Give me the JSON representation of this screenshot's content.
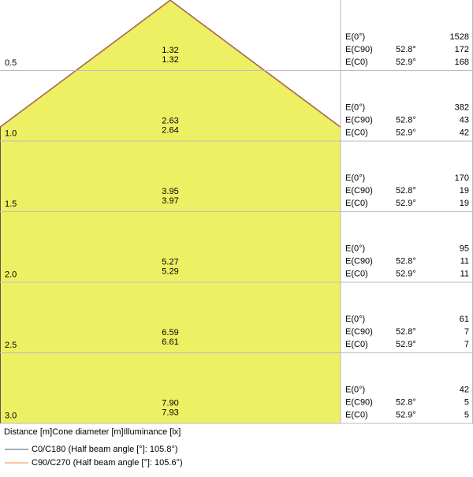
{
  "rows": [
    {
      "distance": "0.5",
      "diameters": [
        "1.32",
        "1.32"
      ],
      "illuminance": [
        {
          "label": "E(0°)",
          "value": "1528"
        },
        {
          "label": "E(C90)",
          "angle": "52.8°",
          "value": "172"
        },
        {
          "label": "E(C0)",
          "angle": "52.9°",
          "value": "168"
        }
      ]
    },
    {
      "distance": "1.0",
      "diameters": [
        "2.63",
        "2.64"
      ],
      "illuminance": [
        {
          "label": "E(0°)",
          "value": "382"
        },
        {
          "label": "E(C90)",
          "angle": "52.8°",
          "value": "43"
        },
        {
          "label": "E(C0)",
          "angle": "52.9°",
          "value": "42"
        }
      ]
    },
    {
      "distance": "1.5",
      "diameters": [
        "3.95",
        "3.97"
      ],
      "illuminance": [
        {
          "label": "E(0°)",
          "value": "170"
        },
        {
          "label": "E(C90)",
          "angle": "52.8°",
          "value": "19"
        },
        {
          "label": "E(C0)",
          "angle": "52.9°",
          "value": "19"
        }
      ]
    },
    {
      "distance": "2.0",
      "diameters": [
        "5.27",
        "5.29"
      ],
      "illuminance": [
        {
          "label": "E(0°)",
          "value": "95"
        },
        {
          "label": "E(C90)",
          "angle": "52.8°",
          "value": "11"
        },
        {
          "label": "E(C0)",
          "angle": "52.9°",
          "value": "11"
        }
      ]
    },
    {
      "distance": "2.5",
      "diameters": [
        "6.59",
        "6.61"
      ],
      "illuminance": [
        {
          "label": "E(0°)",
          "value": "61"
        },
        {
          "label": "E(C90)",
          "angle": "52.8°",
          "value": "7"
        },
        {
          "label": "E(C0)",
          "angle": "52.9°",
          "value": "7"
        }
      ]
    },
    {
      "distance": "3.0",
      "diameters": [
        "7.90",
        "7.93"
      ],
      "illuminance": [
        {
          "label": "E(0°)",
          "value": "42"
        },
        {
          "label": "E(C90)",
          "angle": "52.8°",
          "value": "5"
        },
        {
          "label": "E(C0)",
          "angle": "52.9°",
          "value": "5"
        }
      ]
    }
  ],
  "footer": "Distance [m]Cone diameter [m]Illuminance [lx]",
  "legend": [
    {
      "name": "C0/C180 (Half beam angle [°]: 105.8°)",
      "color": "#555555"
    },
    {
      "name": "C90/C270 (Half beam angle [°]: 105.6°)",
      "color": "#f08a3c"
    }
  ]
}
